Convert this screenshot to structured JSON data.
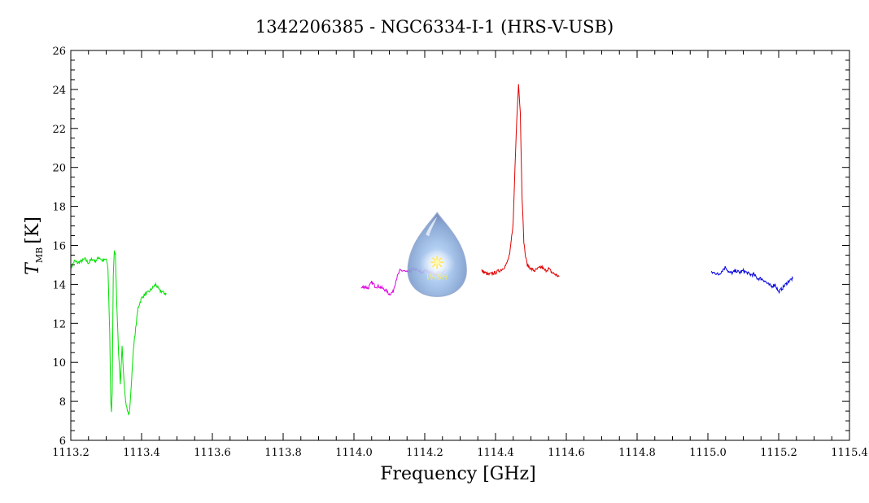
{
  "chart_data": {
    "type": "line",
    "title": "1342206385 - NGC6334-I-1 (HRS-V-USB)",
    "xlabel": "Frequency [GHz]",
    "ylabel": "T",
    "ylabel_sub": "MB",
    "ylabel_unit": "[K]",
    "xlim": [
      1113.2,
      1115.4
    ],
    "ylim": [
      6,
      26
    ],
    "x_ticks": [
      1113.2,
      1113.4,
      1113.6,
      1113.8,
      1114.0,
      1114.2,
      1114.4,
      1114.6,
      1114.8,
      1115.0,
      1115.2,
      1115.4
    ],
    "x_tick_labels": [
      "1113.2",
      "1113.4",
      "1113.6",
      "1113.8",
      "1114.0",
      "1114.2",
      "1114.4",
      "1114.6",
      "1114.8",
      "1115.0",
      "1115.2",
      "1115.4"
    ],
    "y_ticks": [
      6,
      8,
      10,
      12,
      14,
      16,
      18,
      20,
      22,
      24,
      26
    ],
    "y_tick_labels": [
      "6",
      "8",
      "10",
      "12",
      "14",
      "16",
      "18",
      "20",
      "22",
      "24",
      "26"
    ],
    "grid": false,
    "series": [
      {
        "color": "#00e000",
        "x": [
          1113.2,
          1113.21,
          1113.22,
          1113.23,
          1113.24,
          1113.25,
          1113.26,
          1113.27,
          1113.28,
          1113.29,
          1113.3,
          1113.305,
          1113.31,
          1113.313,
          1113.315,
          1113.317,
          1113.32,
          1113.323,
          1113.326,
          1113.33,
          1113.335,
          1113.34,
          1113.345,
          1113.35,
          1113.355,
          1113.36,
          1113.365,
          1113.37,
          1113.375,
          1113.38,
          1113.385,
          1113.39,
          1113.4,
          1113.41,
          1113.42,
          1113.43,
          1113.44,
          1113.45,
          1113.46,
          1113.47
        ],
        "y": [
          14.8,
          15.2,
          15.1,
          15.2,
          15.3,
          15.1,
          15.3,
          15.2,
          15.4,
          15.2,
          15.3,
          14.8,
          11.5,
          8.0,
          7.4,
          8.5,
          14.5,
          15.8,
          15.5,
          13.0,
          10.5,
          8.8,
          10.8,
          9.2,
          8.0,
          7.5,
          7.3,
          8.5,
          10.2,
          11.2,
          12.0,
          12.8,
          13.3,
          13.5,
          13.6,
          13.8,
          14.0,
          13.7,
          13.6,
          13.5
        ]
      },
      {
        "color": "#e000e0",
        "x": [
          1114.02,
          1114.03,
          1114.04,
          1114.05,
          1114.06,
          1114.07,
          1114.08,
          1114.09,
          1114.1,
          1114.11,
          1114.12,
          1114.13,
          1114.14,
          1114.15,
          1114.16,
          1114.17,
          1114.18,
          1114.19,
          1114.2,
          1114.21,
          1114.22,
          1114.23,
          1114.24,
          1114.25,
          1114.26
        ],
        "y": [
          13.8,
          13.9,
          13.8,
          14.1,
          13.9,
          13.9,
          13.8,
          13.7,
          13.5,
          13.6,
          14.3,
          14.7,
          14.7,
          14.6,
          14.7,
          14.8,
          14.7,
          14.6,
          14.7,
          14.7,
          14.6,
          14.5,
          14.6,
          14.6,
          14.8
        ]
      },
      {
        "color": "#e00000",
        "x": [
          1114.36,
          1114.38,
          1114.4,
          1114.42,
          1114.43,
          1114.44,
          1114.45,
          1114.455,
          1114.46,
          1114.465,
          1114.47,
          1114.475,
          1114.48,
          1114.485,
          1114.49,
          1114.5,
          1114.51,
          1114.52,
          1114.53,
          1114.54,
          1114.55,
          1114.56,
          1114.57,
          1114.58
        ],
        "y": [
          14.7,
          14.5,
          14.6,
          14.8,
          15.0,
          15.5,
          17.2,
          20.0,
          22.5,
          24.3,
          22.8,
          18.5,
          16.2,
          15.4,
          15.0,
          14.8,
          14.7,
          14.8,
          14.9,
          14.7,
          14.8,
          14.6,
          14.5,
          14.4
        ]
      },
      {
        "color": "#0000e0",
        "x": [
          1115.01,
          1115.02,
          1115.03,
          1115.04,
          1115.05,
          1115.06,
          1115.07,
          1115.08,
          1115.09,
          1115.1,
          1115.11,
          1115.12,
          1115.13,
          1115.14,
          1115.15,
          1115.16,
          1115.17,
          1115.18,
          1115.19,
          1115.2,
          1115.21,
          1115.22,
          1115.23,
          1115.24
        ],
        "y": [
          14.6,
          14.6,
          14.5,
          14.7,
          14.9,
          14.6,
          14.6,
          14.7,
          14.6,
          14.7,
          14.6,
          14.5,
          14.5,
          14.3,
          14.3,
          14.2,
          14.0,
          13.9,
          14.0,
          13.6,
          13.8,
          14.0,
          14.2,
          14.3
        ]
      }
    ],
    "logo": {
      "name": "water-drop-logo",
      "text": "WISH",
      "center_x": 1114.235,
      "center_y": 15.3
    }
  }
}
